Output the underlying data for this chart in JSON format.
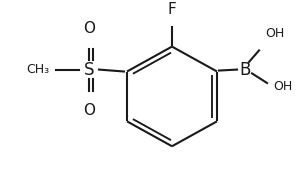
{
  "bg_color": "#ffffff",
  "line_color": "#1a1a1a",
  "line_width": 1.5,
  "font_size": 10,
  "figsize": [
    3.0,
    1.75
  ],
  "dpi": 100,
  "xlim": [
    0,
    300
  ],
  "ylim": [
    0,
    175
  ]
}
